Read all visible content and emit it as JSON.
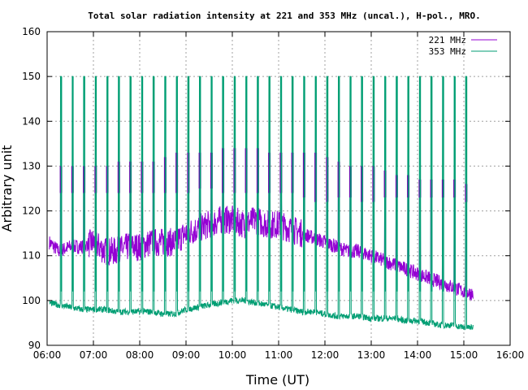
{
  "chart_data": {
    "type": "line",
    "title": "Total solar radiation intensity at 221 and 353 MHz (uncal.), H-pol., MRO.",
    "xlabel": "Time (UT)",
    "ylabel": "Arbitrary unit",
    "xlim": [
      6,
      16
    ],
    "ylim": [
      90,
      160
    ],
    "x_ticks": [
      "06:00",
      "07:00",
      "08:00",
      "09:00",
      "10:00",
      "11:00",
      "12:00",
      "13:00",
      "14:00",
      "15:00",
      "16:00"
    ],
    "y_ticks": [
      "90",
      "100",
      "110",
      "120",
      "130",
      "140",
      "150",
      "160"
    ],
    "grid": true,
    "legend_position": "top-right",
    "series": [
      {
        "name": "221 MHz",
        "color": "#9400d3",
        "x": [
          6.05,
          6.25,
          6.5,
          6.75,
          7.0,
          7.25,
          7.5,
          7.75,
          8.0,
          8.25,
          8.5,
          8.75,
          9.0,
          9.25,
          9.5,
          9.75,
          10.0,
          10.25,
          10.5,
          10.75,
          11.0,
          11.25,
          11.5,
          11.75,
          12.0,
          12.25,
          12.5,
          12.75,
          13.0,
          13.25,
          13.5,
          13.75,
          14.0,
          14.25,
          14.5,
          14.75,
          15.0,
          15.2
        ],
        "values": [
          113,
          111,
          112,
          112,
          113,
          111,
          111,
          112,
          112,
          113,
          113,
          113,
          115,
          116,
          117,
          118,
          118,
          117,
          118,
          117,
          117,
          116,
          115,
          114,
          113,
          112,
          111,
          111,
          110,
          109,
          108,
          107,
          106,
          105,
          104,
          103,
          102,
          101.5
        ]
      },
      {
        "name": "353 MHz",
        "color": "#009e73",
        "x": [
          6.05,
          6.25,
          6.5,
          6.75,
          7.0,
          7.25,
          7.5,
          7.75,
          8.0,
          8.25,
          8.5,
          8.75,
          9.0,
          9.25,
          9.5,
          9.75,
          10.0,
          10.25,
          10.5,
          10.75,
          11.0,
          11.25,
          11.5,
          11.75,
          12.0,
          12.25,
          12.5,
          12.75,
          13.0,
          13.25,
          13.5,
          13.75,
          14.0,
          14.25,
          14.5,
          14.75,
          15.0,
          15.2
        ],
        "values": [
          99.5,
          99,
          98.5,
          98,
          98,
          98,
          97.5,
          97.5,
          97.5,
          97.5,
          97,
          97,
          98,
          98.5,
          99,
          99.5,
          100,
          100,
          99.5,
          99,
          98.5,
          98,
          97.5,
          97.5,
          97,
          96.5,
          96.5,
          96.5,
          96,
          96,
          96,
          95.5,
          95.5,
          95,
          94.5,
          94.5,
          94,
          94
        ]
      }
    ],
    "calibration_spikes": {
      "times": [
        6.3,
        6.55,
        6.8,
        7.05,
        7.3,
        7.55,
        7.8,
        8.05,
        8.3,
        8.55,
        8.8,
        9.05,
        9.3,
        9.55,
        9.8,
        10.05,
        10.3,
        10.55,
        10.8,
        11.05,
        11.3,
        11.55,
        11.8,
        12.05,
        12.3,
        12.55,
        12.8,
        13.05,
        13.3,
        13.55,
        13.8,
        14.05,
        14.3,
        14.55,
        14.8,
        15.05
      ],
      "peak_353": 150,
      "peak_221": [
        130,
        130,
        130,
        130,
        130,
        131,
        131,
        131,
        131,
        132,
        133,
        133,
        133,
        133,
        134,
        134,
        134,
        134,
        133,
        133,
        133,
        133,
        133,
        132,
        131,
        130,
        130,
        130,
        129,
        128,
        128,
        127,
        127,
        127,
        127,
        126
      ],
      "base_221": [
        124,
        124,
        124,
        124,
        124,
        124,
        124,
        124,
        124,
        124,
        124,
        124,
        125,
        125,
        124,
        124,
        124,
        124,
        124,
        124,
        124,
        123,
        122,
        122,
        123,
        123,
        122,
        122,
        123,
        123,
        123,
        123,
        123,
        123,
        123,
        122
      ]
    }
  }
}
